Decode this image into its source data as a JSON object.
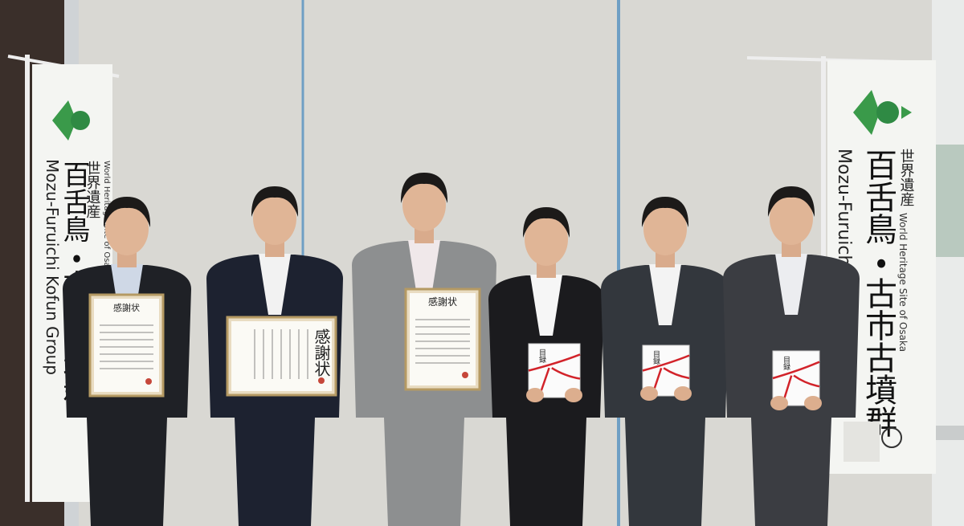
{
  "banners": [
    {
      "heading": "世界遺産",
      "title": "百舌鳥・古市古墳群",
      "romaji": "Mozu-Furuichi Kofun Group",
      "subtitle": "World Heritage Site of Osaka"
    },
    {
      "heading": "世界遺産",
      "title": "百舌鳥・古市古墳群",
      "romaji": "Mozu-Furuichi Kofun Group",
      "subtitle": "World Heritage Site of Osaka"
    }
  ],
  "certificates": [
    "感謝状",
    "感謝状",
    "感謝状"
  ],
  "envelopes": [
    "目録",
    "目録",
    "目録"
  ]
}
